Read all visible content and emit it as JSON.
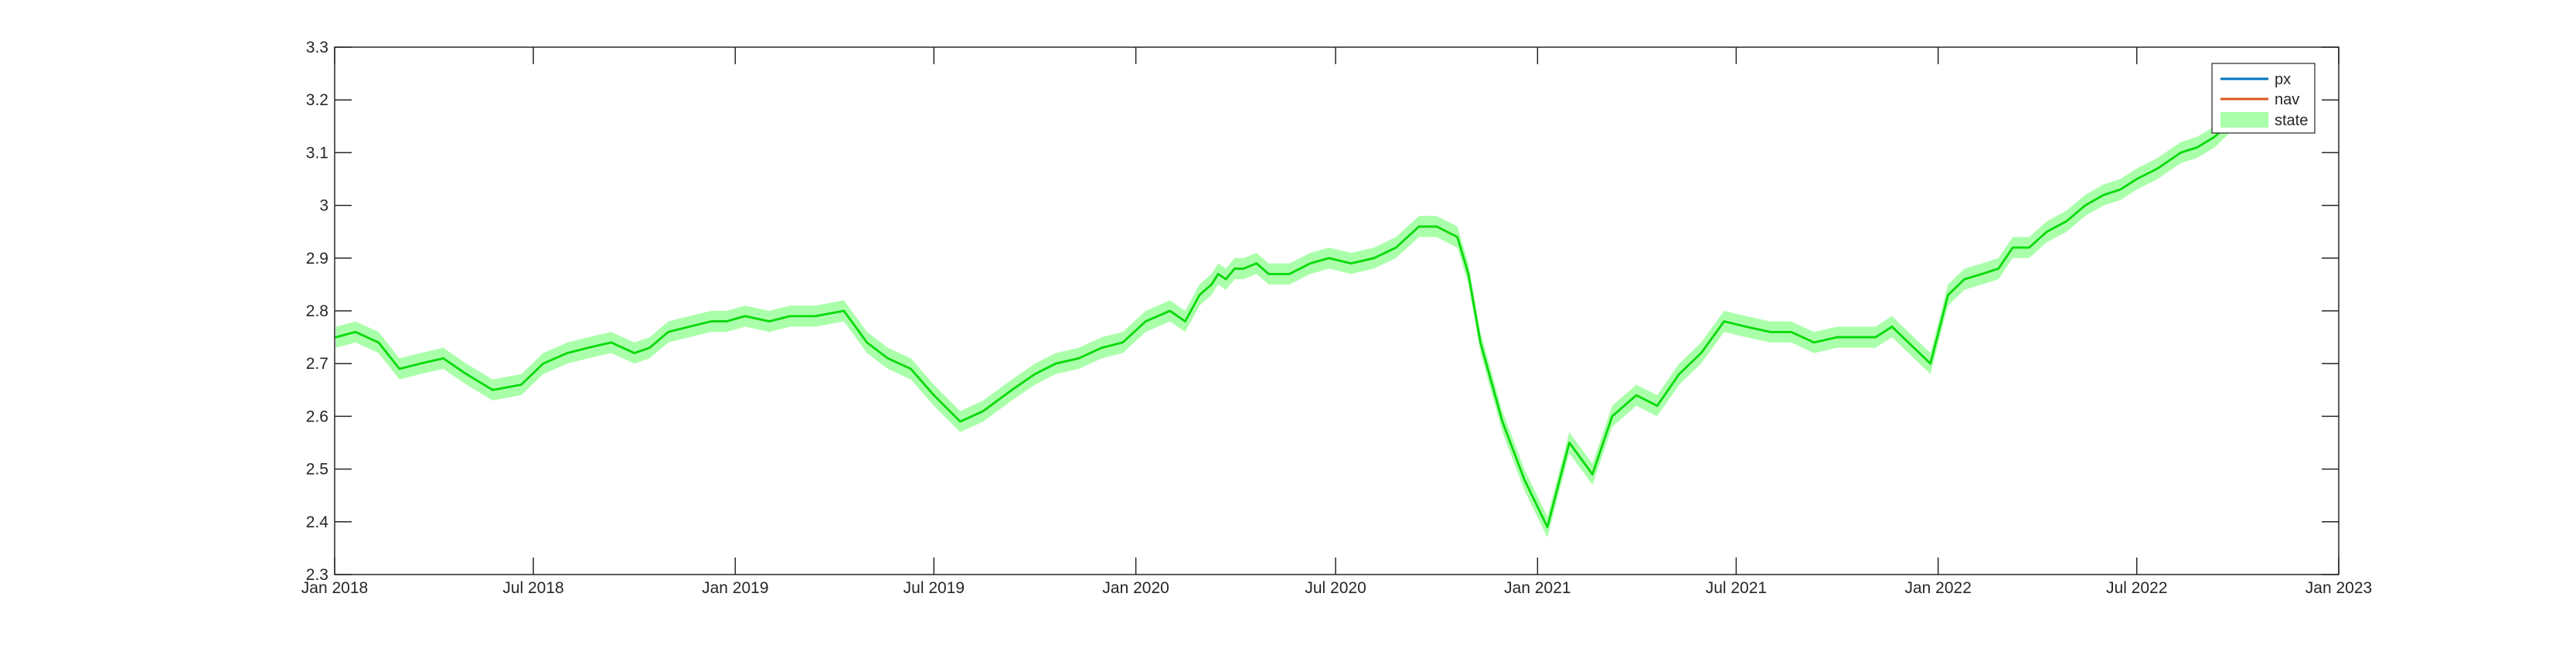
{
  "chart_data": {
    "type": "line",
    "title": "",
    "xlabel": "",
    "ylabel": "",
    "xlim": [
      "2018-01-01",
      "2023-01-01"
    ],
    "ylim": [
      2.3,
      3.3
    ],
    "grid": false,
    "legend_position": "top-right",
    "x_tick_labels": [
      "Jan 2018",
      "Jul 2018",
      "Jan 2019",
      "Jul 2019",
      "Jan 2020",
      "Jul 2020",
      "Jan 2021",
      "Jul 2021",
      "Jan 2022",
      "Jul 2022",
      "Jan 2023"
    ],
    "x_tick_dates": [
      "2018-01-01",
      "2018-07-01",
      "2019-01-01",
      "2019-07-01",
      "2020-01-01",
      "2020-07-01",
      "2021-01-01",
      "2021-07-01",
      "2022-01-01",
      "2022-07-01",
      "2023-01-01"
    ],
    "y_ticks": [
      2.3,
      2.4,
      2.5,
      2.6,
      2.7,
      2.8,
      2.9,
      3.0,
      3.1,
      3.2,
      3.3
    ],
    "y_tick_labels": [
      "2.3",
      "2.4",
      "2.5",
      "2.6",
      "2.7",
      "2.8",
      "2.9",
      "3",
      "3.1",
      "3.2",
      "3.3"
    ],
    "series": [
      {
        "name": "px",
        "color": "#0072BD",
        "x": [
          "2018-01-02",
          "2018-01-20",
          "2018-02-10",
          "2018-03-01",
          "2018-03-20",
          "2018-04-10",
          "2018-05-01",
          "2018-05-25",
          "2018-06-20",
          "2018-07-10",
          "2018-08-01",
          "2018-08-20",
          "2018-09-10",
          "2018-10-01",
          "2018-10-15",
          "2018-11-01",
          "2018-11-20",
          "2018-12-10",
          "2018-12-24",
          "2019-01-10",
          "2019-02-01",
          "2019-02-20",
          "2019-03-15",
          "2019-04-10",
          "2019-05-01",
          "2019-05-20",
          "2019-06-10",
          "2019-07-01",
          "2019-07-25",
          "2019-08-15",
          "2019-09-10",
          "2019-10-01",
          "2019-10-20",
          "2019-11-10",
          "2019-12-01",
          "2019-12-20",
          "2020-01-10",
          "2020-02-01",
          "2020-02-15",
          "2020-02-28",
          "2020-03-10",
          "2020-03-16",
          "2020-03-23",
          "2020-03-31",
          "2020-04-08",
          "2020-04-20",
          "2020-05-01",
          "2020-05-20",
          "2020-06-08",
          "2020-06-25",
          "2020-07-15",
          "2020-08-05",
          "2020-08-25",
          "2020-09-15",
          "2020-10-01",
          "2020-10-20",
          "2020-10-30",
          "2020-11-10",
          "2020-11-30",
          "2020-12-20",
          "2021-01-10",
          "2021-01-30",
          "2021-02-20",
          "2021-03-10",
          "2021-04-01",
          "2021-04-20",
          "2021-05-10",
          "2021-05-30",
          "2021-06-20",
          "2021-07-10",
          "2021-08-01",
          "2021-08-20",
          "2021-09-10",
          "2021-10-01",
          "2021-10-20",
          "2021-11-05",
          "2021-11-20",
          "2021-12-05",
          "2021-12-25",
          "2022-01-10",
          "2022-01-25",
          "2022-02-10",
          "2022-02-25",
          "2022-03-10",
          "2022-03-25",
          "2022-04-10",
          "2022-04-28",
          "2022-05-15",
          "2022-06-01",
          "2022-06-16",
          "2022-07-01",
          "2022-07-20",
          "2022-08-10",
          "2022-08-25",
          "2022-09-10",
          "2022-09-25",
          "2022-10-10",
          "2022-10-25",
          "2022-11-05"
        ],
        "values": [
          2.75,
          2.76,
          2.74,
          2.69,
          2.7,
          2.71,
          2.68,
          2.65,
          2.66,
          2.7,
          2.72,
          2.73,
          2.74,
          2.72,
          2.73,
          2.76,
          2.77,
          2.78,
          2.78,
          2.79,
          2.78,
          2.79,
          2.79,
          2.8,
          2.74,
          2.71,
          2.69,
          2.64,
          2.59,
          2.61,
          2.65,
          2.68,
          2.7,
          2.71,
          2.73,
          2.74,
          2.78,
          2.8,
          2.78,
          2.83,
          2.85,
          2.87,
          2.86,
          2.88,
          2.88,
          2.89,
          2.87,
          2.87,
          2.89,
          2.9,
          2.89,
          2.9,
          2.92,
          2.96,
          2.96,
          2.94,
          2.87,
          2.74,
          2.59,
          2.48,
          2.39,
          2.55,
          2.49,
          2.6,
          2.64,
          2.62,
          2.68,
          2.72,
          2.78,
          2.77,
          2.76,
          2.76,
          2.74,
          2.75,
          2.75,
          2.75,
          2.77,
          2.74,
          2.7,
          2.83,
          2.86,
          2.87,
          2.88,
          2.92,
          2.92,
          2.95,
          2.97,
          3.0,
          3.02,
          3.03,
          3.05,
          3.07,
          3.1,
          3.11,
          3.13,
          3.16,
          3.24,
          3.22,
          3.19
        ]
      },
      {
        "name": "nav",
        "color": "#D95319"
      },
      {
        "name": "state",
        "color": "#00E000",
        "band_color": "#AAFFAA",
        "band_halfwidth": 0.02
      }
    ],
    "legend": [
      "px",
      "nav",
      "state"
    ]
  }
}
